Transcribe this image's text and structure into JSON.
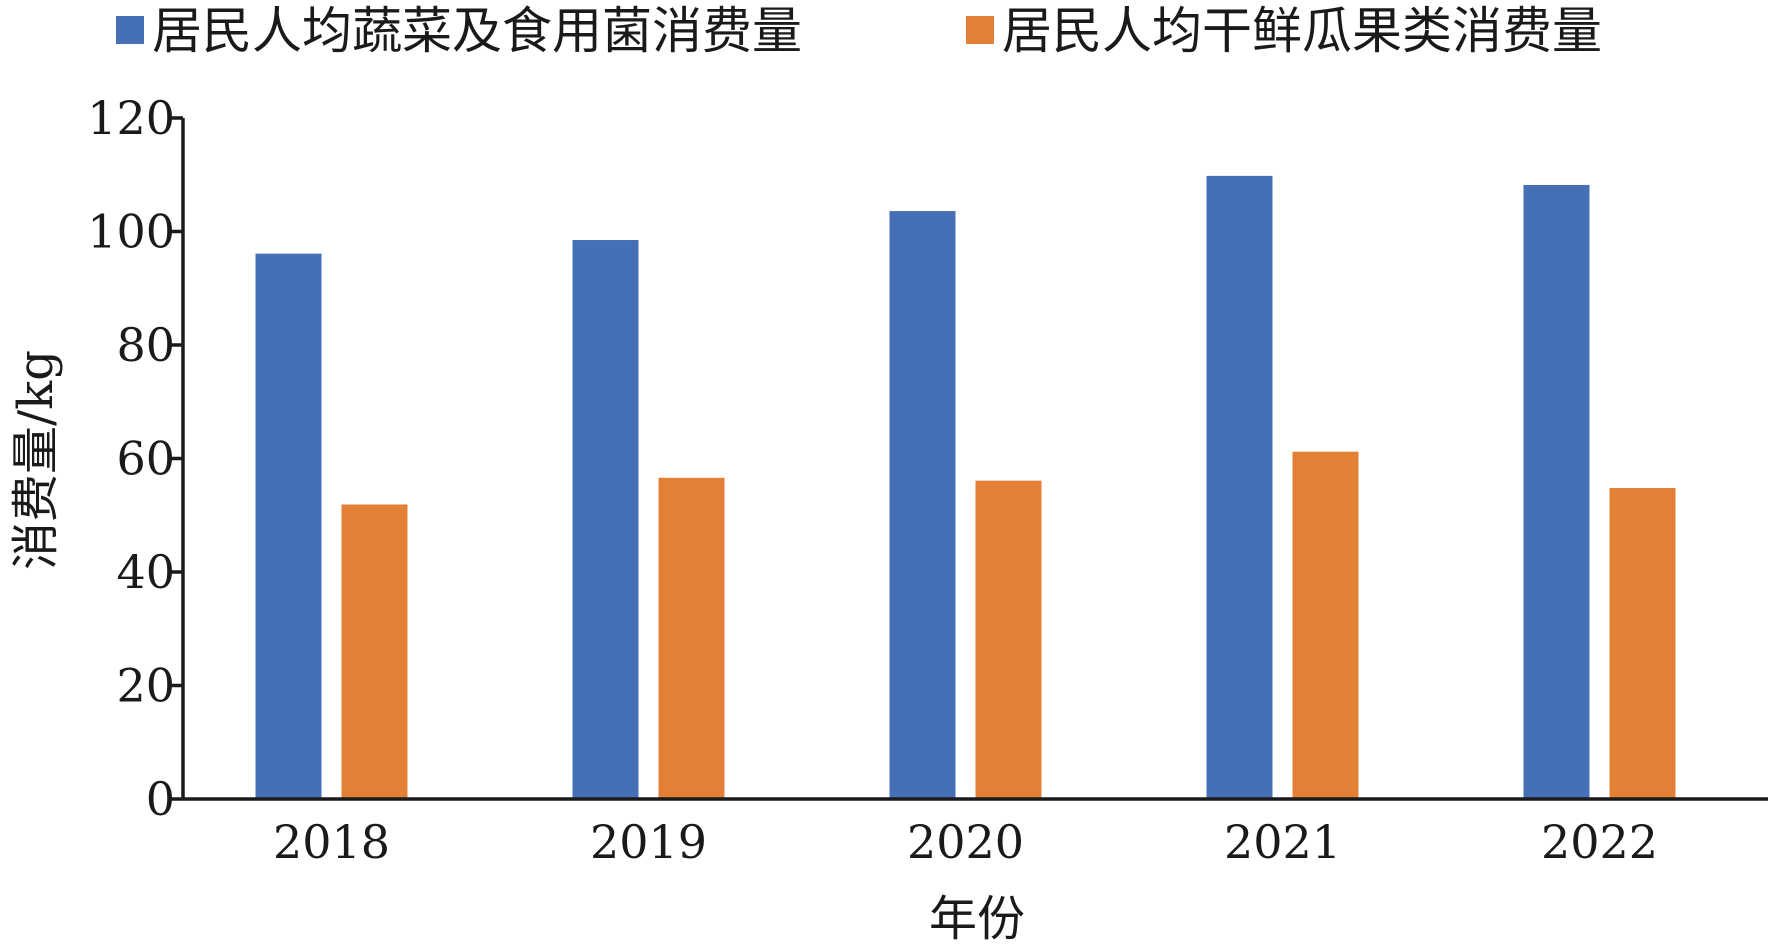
{
  "chart_data": {
    "type": "bar",
    "categories": [
      "2018",
      "2019",
      "2020",
      "2021",
      "2022"
    ],
    "series": [
      {
        "name": "居民人均蔬菜及食用菌消费量",
        "color": "#4570b6",
        "values": [
          96.1,
          98.5,
          103.6,
          109.8,
          108.2
        ]
      },
      {
        "name": "居民人均干鲜瓜果类消费量",
        "color": "#e48035",
        "values": [
          51.9,
          56.6,
          56.1,
          61.2,
          54.8
        ]
      }
    ],
    "xlabel": "年份",
    "ylabel": "消费量/kg",
    "ylim": [
      0,
      120
    ],
    "yticks": [
      0,
      20,
      40,
      60,
      80,
      100,
      120
    ],
    "grid": false,
    "legend_position": "top"
  }
}
